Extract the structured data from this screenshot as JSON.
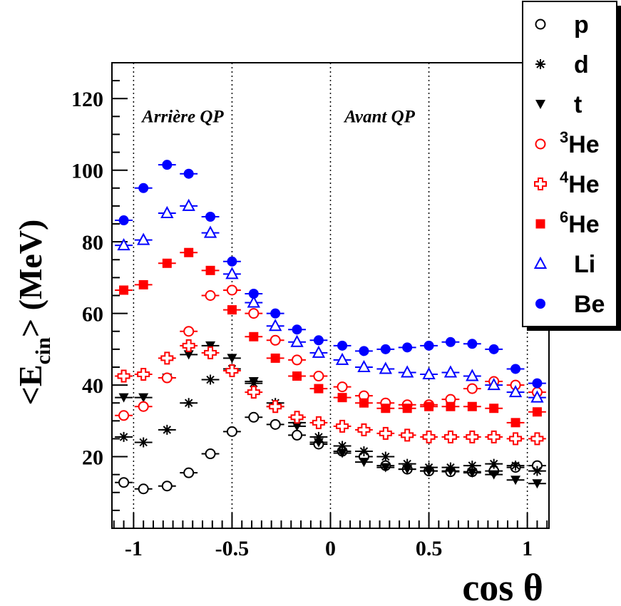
{
  "chart_data": {
    "type": "scatter",
    "xlabel": "cos θ",
    "ylabel_main": "<E",
    "ylabel_sub": "cin",
    "ylabel_tail": "> (MeV)",
    "xlim": [
      -1.11,
      1.11
    ],
    "ylim": [
      0,
      130
    ],
    "x_ticks": [
      -1,
      -0.5,
      0,
      0.5,
      1
    ],
    "x_tick_labels": [
      "-1",
      "-0.5",
      "0",
      "0.5",
      "1"
    ],
    "y_ticks": [
      20,
      40,
      60,
      80,
      100,
      120
    ],
    "y_tick_labels": [
      "20",
      "40",
      "60",
      "80",
      "100",
      "120"
    ],
    "vlines": [
      -1,
      -0.5,
      0,
      0.5,
      1
    ],
    "annotations": [
      {
        "text": "Arrière QP",
        "x": -0.75,
        "y": 115
      },
      {
        "text": "Avant QP",
        "x": 0.25,
        "y": 115
      }
    ],
    "legend_position": "top-right",
    "x": [
      -1.05,
      -0.95,
      -0.83,
      -0.72,
      -0.61,
      -0.5,
      -0.39,
      -0.28,
      -0.17,
      -0.06,
      0.06,
      0.17,
      0.28,
      0.39,
      0.5,
      0.61,
      0.72,
      0.83,
      0.94,
      1.05
    ],
    "series": [
      {
        "name": "p",
        "sup": "",
        "marker": "open-circle",
        "color": "#000000",
        "values": [
          12.8,
          11.0,
          11.8,
          15.5,
          20.8,
          27.0,
          31.0,
          29.0,
          26.0,
          23.5,
          21.5,
          20.0,
          17.5,
          16.5,
          16.0,
          15.8,
          15.8,
          16.0,
          17.0,
          17.5
        ]
      },
      {
        "name": "d",
        "sup": "",
        "marker": "asterisk",
        "color": "#000000",
        "values": [
          25.5,
          24.0,
          27.5,
          35.0,
          41.5,
          44.5,
          40.5,
          35.0,
          29.5,
          25.5,
          23.0,
          21.5,
          20.0,
          18.0,
          17.0,
          17.0,
          17.5,
          18.0,
          17.5,
          16.0
        ]
      },
      {
        "name": "t",
        "sup": "",
        "marker": "filled-triangle-down",
        "color": "#000000",
        "values": [
          36.5,
          36.5,
          42.0,
          48.5,
          51.0,
          47.5,
          41.0,
          34.0,
          28.5,
          24.0,
          21.0,
          18.5,
          17.0,
          16.5,
          16.0,
          16.0,
          15.5,
          15.0,
          13.5,
          12.5
        ]
      },
      {
        "name": "He",
        "sup": "3",
        "marker": "open-circle",
        "color": "#ff0000",
        "values": [
          31.5,
          34.0,
          42.0,
          55.0,
          65.0,
          66.5,
          60.0,
          52.5,
          47.0,
          42.5,
          39.5,
          37.0,
          35.0,
          34.5,
          34.5,
          36.0,
          39.0,
          41.0,
          40.0,
          38.0
        ]
      },
      {
        "name": "He",
        "sup": "4",
        "marker": "open-cross",
        "color": "#ff0000",
        "values": [
          42.5,
          43.0,
          47.5,
          51.0,
          49.0,
          44.0,
          38.0,
          34.0,
          31.0,
          29.5,
          28.5,
          27.5,
          26.5,
          26.0,
          25.5,
          25.5,
          25.5,
          25.5,
          25.0,
          25.0
        ]
      },
      {
        "name": "He",
        "sup": "6",
        "marker": "filled-square",
        "color": "#ff0000",
        "values": [
          66.5,
          68.0,
          74.0,
          77.0,
          72.0,
          61.0,
          53.5,
          47.5,
          42.5,
          39.0,
          36.5,
          35.0,
          33.5,
          33.5,
          34.0,
          34.0,
          34.0,
          33.5,
          29.5,
          32.5
        ]
      },
      {
        "name": "Li",
        "sup": "",
        "marker": "open-triangle-up",
        "color": "#0000ff",
        "values": [
          79.0,
          80.5,
          88.0,
          90.0,
          82.5,
          71.0,
          63.0,
          56.5,
          52.0,
          49.0,
          47.0,
          45.0,
          44.5,
          43.5,
          43.0,
          43.5,
          42.5,
          40.0,
          38.0,
          36.5
        ]
      },
      {
        "name": "Be",
        "sup": "",
        "marker": "filled-circle",
        "color": "#0000ff",
        "values": [
          86.0,
          95.0,
          101.5,
          99.0,
          87.0,
          74.5,
          65.5,
          60.0,
          55.5,
          52.5,
          51.0,
          49.5,
          50.0,
          50.5,
          51.0,
          52.0,
          51.5,
          50.0,
          44.5,
          40.5
        ]
      }
    ]
  }
}
